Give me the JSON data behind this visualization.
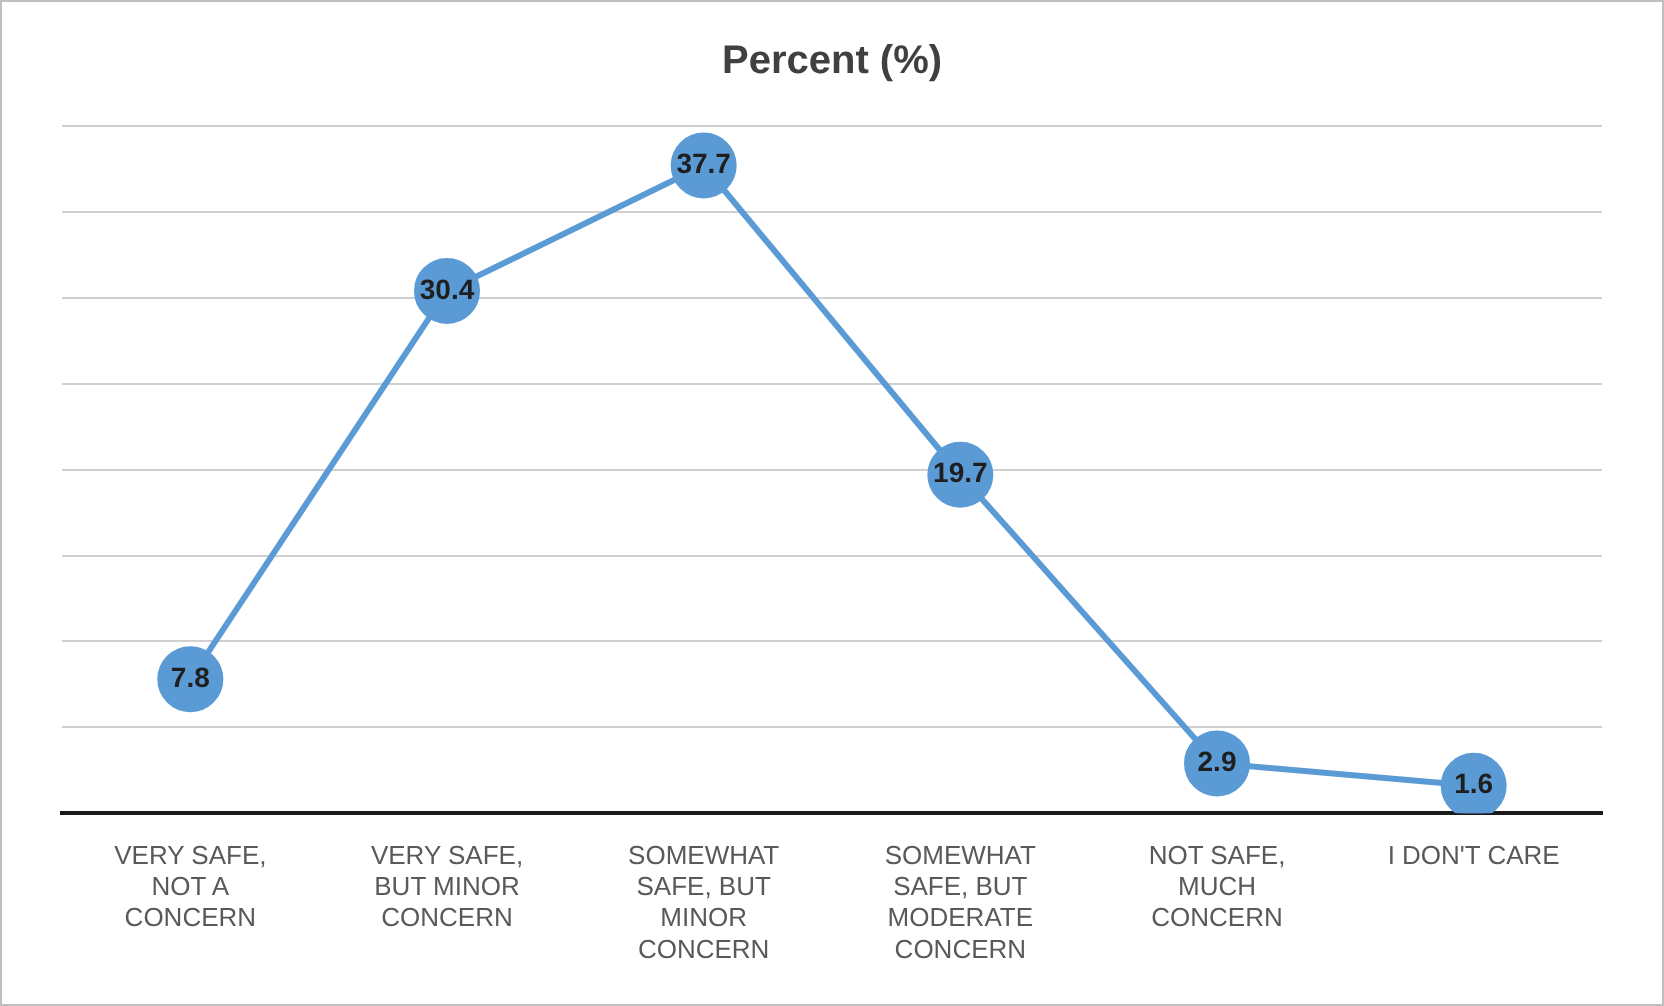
{
  "chart_data": {
    "type": "line",
    "title": "Percent (%)",
    "categories": [
      "VERY SAFE, NOT A CONCERN",
      "VERY SAFE, BUT MINOR CONCERN",
      "SOMEWHAT SAFE, BUT MINOR CONCERN",
      "SOMEWHAT SAFE, BUT MODERATE CONCERN",
      "NOT SAFE, MUCH CONCERN",
      "I DON'T CARE"
    ],
    "values": [
      7.8,
      30.4,
      37.7,
      19.7,
      2.9,
      1.6
    ],
    "color": "#5b9bd5",
    "marker": "circle",
    "data_labels": true,
    "grid": "y",
    "tick_labels": "x",
    "legend": false,
    "ylim": [
      0,
      40
    ],
    "yticks": [
      {
        "value": 0,
        "label": null
      },
      {
        "value": 5,
        "label": null
      },
      {
        "value": 10,
        "label": null
      },
      {
        "value": 15,
        "label": null
      },
      {
        "value": 20,
        "label": null
      },
      {
        "value": 25,
        "label": null
      },
      {
        "value": 30,
        "label": null
      },
      {
        "value": 35,
        "label": null
      },
      {
        "value": 40,
        "label": null
      }
    ]
  }
}
